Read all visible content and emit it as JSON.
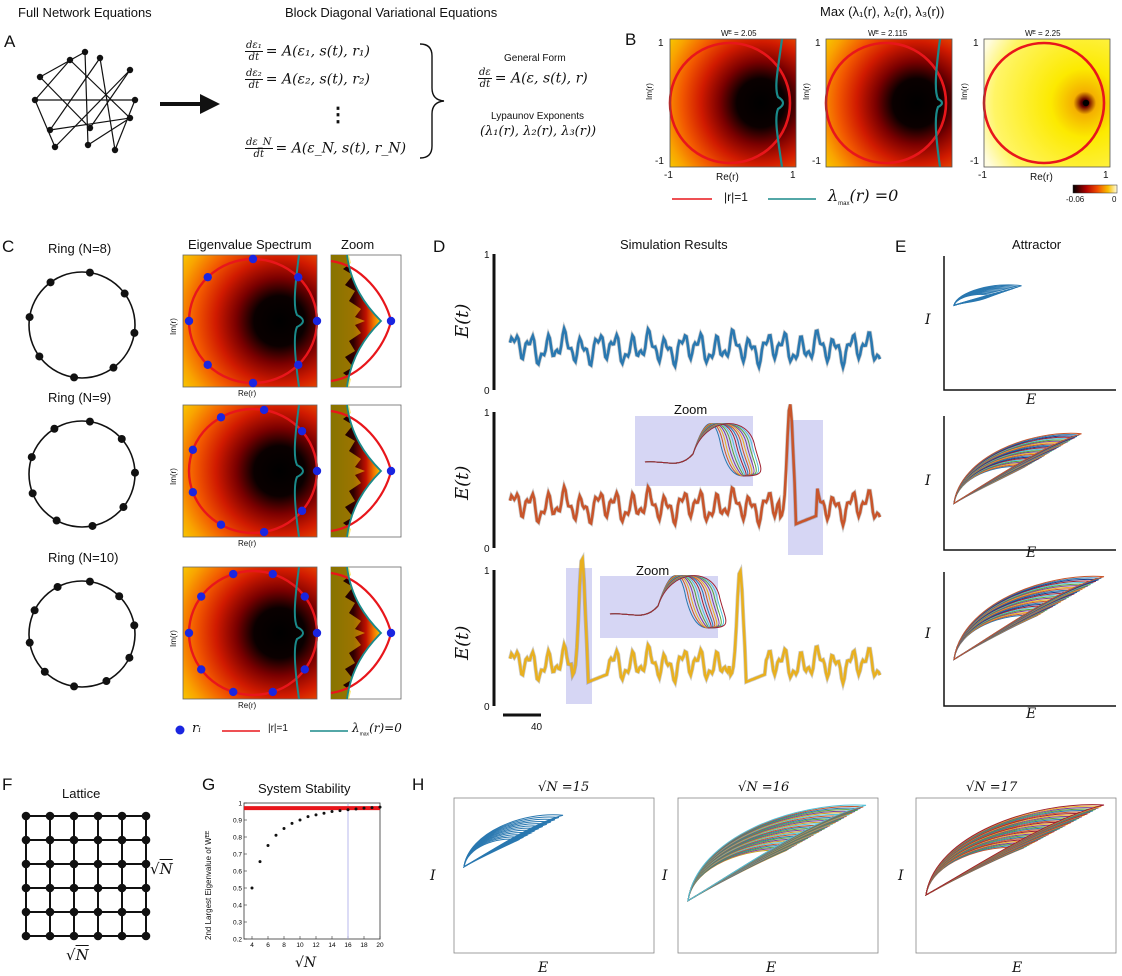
{
  "panel_a": {
    "label": "A",
    "title_left": "Full Network Equations",
    "title_mid": "Block Diagonal Variational Equations",
    "eq1_frac": [
      "dε₁",
      "dt"
    ],
    "eq1_rhs": "= A(ε₁, s(t), r₁)",
    "eq2_frac": [
      "dε₂",
      "dt"
    ],
    "eq2_rhs": "= A(ε₂, s(t), r₂)",
    "eqN_frac": [
      "dε_N",
      "dt"
    ],
    "eqN_rhs": "= A(ε_N, s(t), r_N)",
    "vdots": "⋮",
    "general_form_label": "General Form",
    "general_frac": [
      "dε",
      "dt"
    ],
    "general_rhs": "= A(ε, s(t), r)",
    "lyap_label": "Lypaunov Exponents",
    "lyap_expr": "(λ₁(r), λ₂(r), λ₃(r))"
  },
  "panel_b": {
    "label": "B",
    "title": "Max (λ₁(r), λ₂(r), λ₃(r))",
    "subplots": [
      {
        "wlabel": "Wᴱ = 2.05"
      },
      {
        "wlabel": "Wᴱ = 2.115"
      },
      {
        "wlabel": "Wᴱ = 2.25"
      }
    ],
    "y_top": "1",
    "y_bottom": "-1",
    "ylabel": "Im(r)",
    "x_left": "-1",
    "x_right": "1",
    "xlabel": "Re(r)",
    "colorbar_min": "-0.06",
    "colorbar_max": "0",
    "legend_red": "|r|=1",
    "legend_teal_sym": "λ",
    "legend_teal_sub": "max",
    "legend_teal_rest": "(r) =0"
  },
  "panel_c": {
    "label": "C",
    "col_spectrum": "Eigenvalue Spectrum",
    "col_zoom": "Zoom",
    "rings": [
      {
        "title": "Ring (N=8)"
      },
      {
        "title": "Ring (N=9)"
      },
      {
        "title": "Ring (N=10)"
      }
    ],
    "ylabel": "Im(r)",
    "xlabel": "Re(r)",
    "legend_dot": "rᵢ",
    "legend_red": "|r|=1",
    "legend_teal_sym": "λ",
    "legend_teal_sub": "max",
    "legend_teal_rest": "(r)=0"
  },
  "panel_d": {
    "label": "D",
    "title": "Simulation Results",
    "ylabel": "E(t)",
    "y_top": "1",
    "y_bottom": "0",
    "zoom_label": "Zoom",
    "scalebar_label": "40"
  },
  "panel_e": {
    "label": "E",
    "title": "Attractor",
    "xlabel": "E",
    "ylabel": "I"
  },
  "panel_f": {
    "label": "F",
    "title": "Lattice",
    "side_label": "√N",
    "bottom_label": "√N"
  },
  "panel_g": {
    "label": "G",
    "title": "System Stability",
    "ylabel": "2nd Largest Eigenvalue of Wᴱᴱ",
    "xlabel": "√N",
    "colors": {
      "threshold": "#e8161b",
      "guide": "#a9a9e8"
    },
    "chart_data": {
      "type": "scatter",
      "title": "System Stability",
      "xlabel": "√N",
      "ylabel": "2nd Largest Eigenvalue of W^EE",
      "xlim": [
        3,
        20
      ],
      "ylim": [
        0.2,
        1.0
      ],
      "x": [
        4,
        5,
        6,
        7,
        8,
        9,
        10,
        11,
        12,
        13,
        14,
        15,
        16,
        17,
        18,
        19,
        20
      ],
      "y": [
        0.5,
        0.655,
        0.75,
        0.81,
        0.85,
        0.88,
        0.9,
        0.92,
        0.93,
        0.94,
        0.95,
        0.955,
        0.96,
        0.965,
        0.97,
        0.973,
        0.976
      ],
      "threshold": 0.97,
      "vertical_line_x": 16,
      "x_ticks": [
        "4",
        "6",
        "8",
        "10",
        "12",
        "14",
        "16",
        "18",
        "20"
      ],
      "y_ticks": [
        "0.2",
        "0.3",
        "0.4",
        "0.5",
        "0.6",
        "0.7",
        "0.8",
        "0.9",
        "1"
      ]
    }
  },
  "panel_h": {
    "label": "H",
    "titles": [
      "√N =15",
      "√N =16",
      "√N =17"
    ],
    "xlabel": "E",
    "ylabel": "I"
  },
  "colors": {
    "red_circle": "#e8161b",
    "teal_curve": "#1a8a8a",
    "blue_dot": "#1a25e0",
    "d_series": "#2a78b0",
    "d_series2": "#c8552b",
    "d_series3": "#e8b020",
    "zoom_bg": "#d6d6f4"
  }
}
